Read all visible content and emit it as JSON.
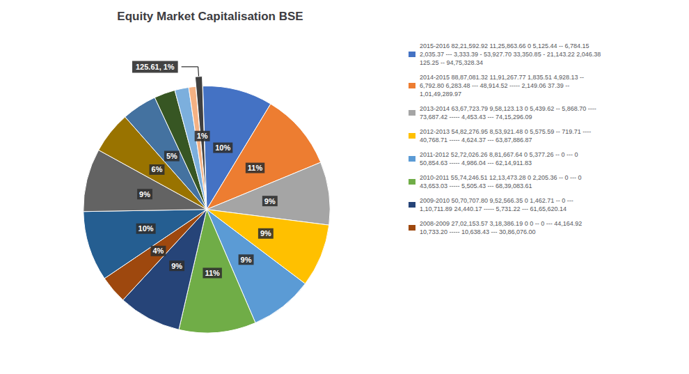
{
  "chart_data": {
    "type": "pie",
    "title": "Equity Market Capitalisation BSE",
    "categories": [
      "2015-2016 82,21,592.92 11,25,863.66 0 5,125.44 -- 6,784.15\n2,035.37 --- 3,333.39 - 53,927.70 33,350.85 - 21,143.22 2,046.38\n125.25 -- 94,75,328.34",
      "2014-2015 88,87,081.32 11,91,267.77 1,835.51 4,928.13 --\n6,792.80 6,283.48 --- 48,914.52 ----- 2,149.06 37.39 --\n1,01,49,289.97",
      "2013-2014 63,67,723.79 9,58,123.13 0 5,439.62 -- 5,868.70 ----\n73,687.42 ----- 4,453.43 --- 74,15,296.09",
      "2012-2013 54,82,276.95 8,53,921.48 0 5,575.59 -- 719.71 ----\n40,768.71 ----- 4,624.37 --- 63,87,886.87",
      "2011-2012 52,72,026.26 8,81,667.64 0 5,377.26 -- 0 --- 0\n50,854.63 ----- 4,986.04 --- 62,14,911.83",
      "2010-2011 55,74,246.51 12,13,473.28 0 2,205.36 -- 0 --- 0\n43,653.03 ----- 5,505.43 --- 68,39,083.61",
      "2009-2010 50,70,707.80 9,52,566.35 0 1,462.71 -- 0 ---\n1,10,711.89 24,440.17 ----- 5,731.22 --- 61,65,620.14",
      "2008-2009 27,02,153.57 3,18,386.19 0 0 -- 0 --- 44,164.92\n10,733.20 ----- 10,638.43 --- 30,86,076.00",
      null,
      null,
      null,
      null,
      null,
      null,
      null,
      null
    ],
    "values": [
      10,
      11,
      9,
      9,
      9,
      11,
      9,
      4,
      10,
      9,
      6,
      5,
      3,
      2,
      1,
      1
    ],
    "value_labels": [
      "10%",
      "11%",
      "9%",
      "9%",
      "9%",
      "11%",
      "9%",
      "4%",
      "10%",
      "9%",
      "6%",
      "5%",
      null,
      null,
      null,
      "1%"
    ],
    "data_labels": true,
    "colors": [
      "#4472C4",
      "#ED7D31",
      "#A5A5A5",
      "#FFC000",
      "#5B9BD5",
      "#70AD47",
      "#264478",
      "#9E480E",
      "#255E91",
      "#636363",
      "#997300",
      "#4472A0",
      "#375623",
      "#7CAFDD",
      "#F4B183",
      "#404040"
    ],
    "annotations": [
      {
        "text": "125.61, 1%",
        "index": 15
      }
    ],
    "legend": "right"
  }
}
